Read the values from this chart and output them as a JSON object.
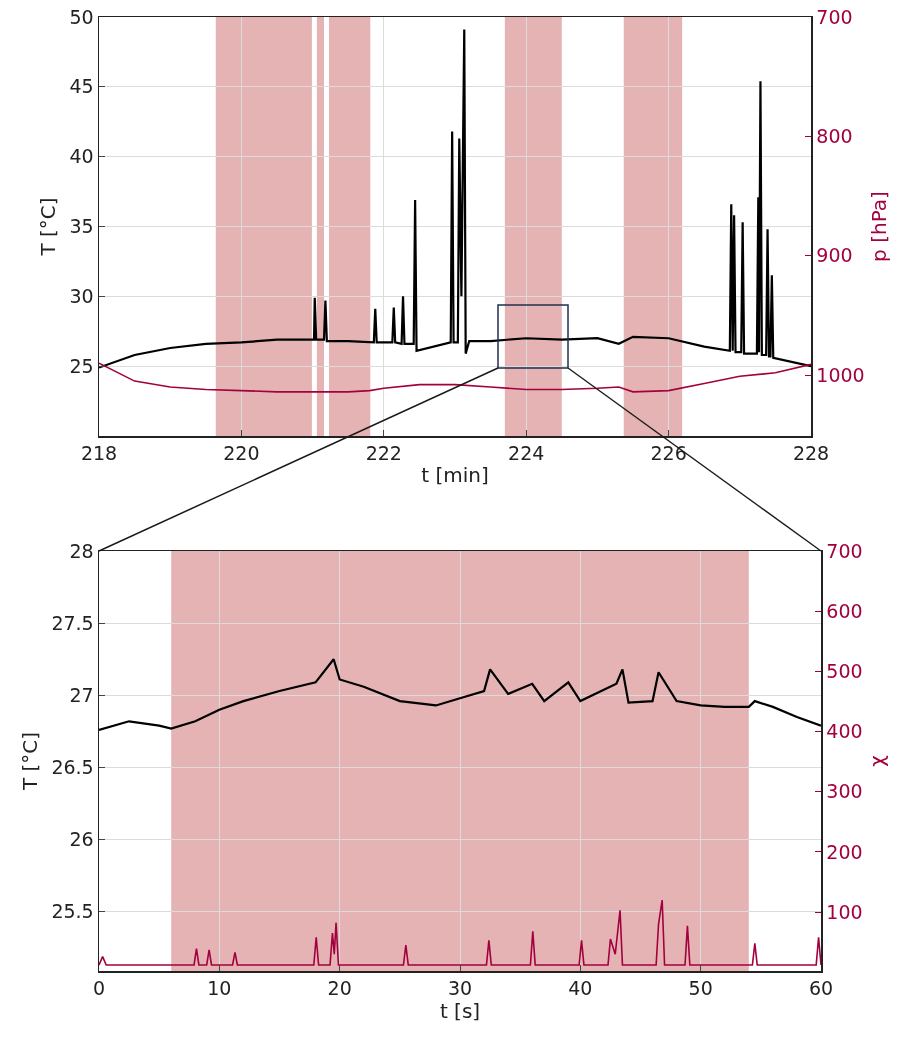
{
  "chart_data": [
    {
      "type": "line",
      "xlabel": "t [min]",
      "ylabel": "T [°C]",
      "y2label": "p [hPa]",
      "xlim": [
        218,
        228
      ],
      "xticks": [
        218,
        220,
        222,
        224,
        226,
        228
      ],
      "ylim": [
        20,
        50
      ],
      "yticks": [
        25,
        30,
        35,
        40,
        45,
        50
      ],
      "y2lim": [
        1051,
        700
      ],
      "y2ticks": [
        700,
        800,
        900,
        1000
      ],
      "grid": true,
      "marker": "none",
      "line_style": "solid",
      "bands": [
        {
          "axis": "x",
          "from": 219.64,
          "to": 220.99,
          "color": "#e5b3b3"
        },
        {
          "axis": "x",
          "from": 221.06,
          "to": 221.16,
          "color": "#e5b3b3"
        },
        {
          "axis": "x",
          "from": 221.23,
          "to": 221.81,
          "color": "#e5b3b3"
        },
        {
          "axis": "x",
          "from": 223.7,
          "to": 224.5,
          "color": "#e5b3b3"
        },
        {
          "axis": "x",
          "from": 225.37,
          "to": 226.19,
          "color": "#e5b3b3"
        }
      ],
      "series": [
        {
          "color": "#000000",
          "x": [
            218,
            218.5,
            219,
            219.5,
            220,
            220.5,
            221,
            221.02,
            221.03,
            221.05,
            221.16,
            221.18,
            221.2,
            221.5,
            221.86,
            221.88,
            221.9,
            222.12,
            222.14,
            222.16,
            222.25,
            222.27,
            222.29,
            222.42,
            222.44,
            222.46,
            222.94,
            222.96,
            222.98,
            223.04,
            223.06,
            223.09,
            223.13,
            223.15,
            223.2,
            223.5,
            224,
            224.5,
            225,
            225.3,
            225.5,
            226,
            226.5,
            226.86,
            226.88,
            226.9,
            226.92,
            226.94,
            227.02,
            227.04,
            227.06,
            227.24,
            227.26,
            227.27,
            227.29,
            227.31,
            227.37,
            227.39,
            227.41,
            227.43,
            227.45,
            227.47,
            228
          ],
          "values": [
            24.9,
            25.8,
            26.3,
            26.6,
            26.7,
            26.9,
            26.9,
            26.9,
            29.9,
            26.9,
            26.9,
            29.7,
            26.8,
            26.8,
            26.7,
            29.1,
            26.7,
            26.7,
            29.2,
            26.7,
            26.6,
            30.0,
            26.6,
            26.6,
            36.9,
            26.1,
            26.7,
            41.8,
            26.7,
            26.7,
            41.3,
            30.0,
            49.1,
            25.9,
            26.8,
            26.8,
            27.0,
            26.9,
            27.0,
            26.6,
            27.1,
            27.0,
            26.4,
            26.1,
            36.6,
            26.1,
            35.8,
            26.0,
            26.0,
            35.3,
            25.9,
            25.9,
            37.1,
            26.0,
            45.4,
            25.8,
            25.8,
            34.8,
            25.7,
            25.7,
            31.5,
            25.6,
            25.0
          ]
        },
        {
          "color": "#a3003f",
          "axis": "y2",
          "x": [
            218,
            218.5,
            219,
            219.5,
            220,
            220.5,
            221,
            221.5,
            221.8,
            222,
            222.5,
            223,
            223.5,
            224,
            224.5,
            225,
            225.3,
            225.5,
            226,
            226.5,
            227,
            227.5,
            228
          ],
          "values": [
            990,
            1005,
            1010,
            1012,
            1013,
            1014,
            1014,
            1014,
            1013,
            1011,
            1008,
            1008,
            1010,
            1012,
            1012,
            1011,
            1010,
            1014,
            1013,
            1007,
            1001,
            998,
            991
          ]
        }
      ]
    },
    {
      "type": "line",
      "xlabel": "t [s]",
      "ylabel": "T [°C]",
      "y2label": "χ",
      "xlim": [
        0,
        60
      ],
      "xticks": [
        0,
        10,
        20,
        30,
        40,
        50,
        60
      ],
      "ylim": [
        25.09,
        28
      ],
      "yticks": [
        25.5,
        26,
        26.5,
        27,
        27.5,
        28
      ],
      "y2lim": [
        2,
        700
      ],
      "y2ticks": [
        100,
        200,
        300,
        400,
        500,
        600,
        700
      ],
      "grid": true,
      "marker": "none",
      "line_style": "solid",
      "bands": [
        {
          "axis": "x",
          "from": 6,
          "to": 54,
          "color": "#e5b3b3"
        }
      ],
      "series": [
        {
          "color": "#000000",
          "x": [
            0,
            2.5,
            5,
            6,
            8,
            10,
            12,
            15,
            18,
            19.5,
            20,
            22,
            25,
            28,
            30,
            32,
            32.5,
            34,
            36,
            37,
            39,
            40,
            43,
            43.5,
            44,
            46,
            46.5,
            48,
            50,
            52,
            54,
            54.5,
            56,
            58,
            60
          ],
          "values": [
            26.76,
            26.82,
            26.79,
            26.77,
            26.82,
            26.9,
            26.96,
            27.03,
            27.09,
            27.25,
            27.11,
            27.06,
            26.96,
            26.93,
            26.98,
            27.03,
            27.18,
            27.01,
            27.08,
            26.96,
            27.09,
            26.96,
            27.08,
            27.18,
            26.95,
            26.96,
            27.16,
            26.96,
            26.93,
            26.92,
            26.92,
            26.96,
            26.92,
            26.85,
            26.79
          ]
        },
        {
          "color": "#a3003f",
          "axis": "y2",
          "x": [
            0,
            0.3,
            0.6,
            7.9,
            8.1,
            8.3,
            8.95,
            9.15,
            9.35,
            11.1,
            11.3,
            11.5,
            17.85,
            18.05,
            18.25,
            19.2,
            19.4,
            19.55,
            19.7,
            19.9,
            25.3,
            25.5,
            25.7,
            32.2,
            32.4,
            32.6,
            35.85,
            36.05,
            36.25,
            39.9,
            40.1,
            40.3,
            42.3,
            42.5,
            42.9,
            43.3,
            43.5,
            46.3,
            46.5,
            46.8,
            47,
            48.7,
            48.9,
            49.1,
            54.3,
            54.5,
            54.7,
            59.6,
            59.8,
            60
          ],
          "values": [
            12,
            26,
            12,
            12,
            39,
            12,
            12,
            37,
            12,
            12,
            33,
            12,
            12,
            58,
            12,
            12,
            65,
            30,
            82,
            12,
            12,
            45,
            12,
            12,
            53,
            12,
            12,
            68,
            12,
            12,
            53,
            12,
            12,
            55,
            30,
            103,
            12,
            12,
            80,
            120,
            12,
            12,
            77,
            12,
            12,
            48,
            12,
            12,
            58,
            12
          ]
        }
      ]
    }
  ]
}
